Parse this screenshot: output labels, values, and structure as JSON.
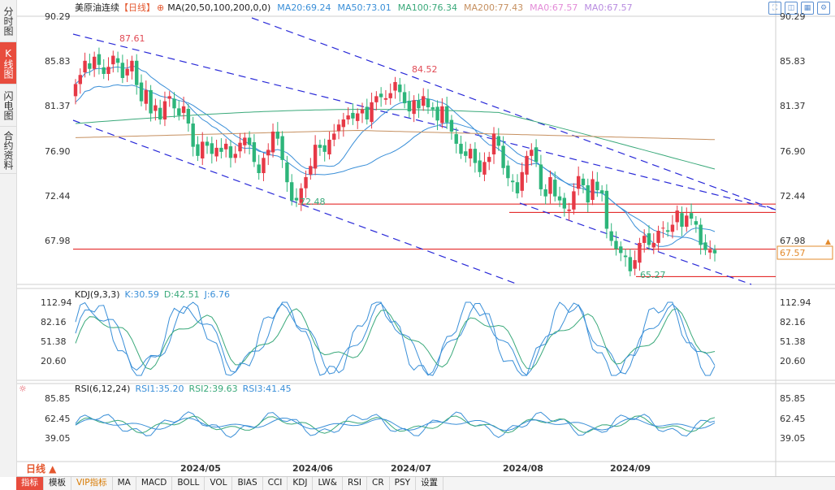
{
  "sidebar": {
    "tabs": [
      {
        "label": "分时图",
        "active": false
      },
      {
        "label": "K线图",
        "active": true
      },
      {
        "label": "闪电图",
        "active": false
      },
      {
        "label": "合约资料",
        "active": false
      }
    ]
  },
  "top_icons": [
    "fullscreen-icon",
    "expand-icon",
    "grid-icon",
    "settings-icon"
  ],
  "main_chart": {
    "title": "美原油连续",
    "period_tag": "【日线】",
    "ma_header": "MA(20,50,100,200,0,0)",
    "ma_labels": [
      {
        "text": "MA20:69.24",
        "color": "#3a8fd8"
      },
      {
        "text": "MA50:73.01",
        "color": "#3a8fd8"
      },
      {
        "text": "MA100:76.34",
        "color": "#3aa97a"
      },
      {
        "text": "MA200:77.43",
        "color": "#c69060"
      },
      {
        "text": "MA0:67.57",
        "color": "#e38bd8"
      },
      {
        "text": "MA0:67.57",
        "color": "#b88be0"
      }
    ],
    "y_ticks": [
      "90.29",
      "85.83",
      "81.37",
      "76.90",
      "72.44",
      "67.98"
    ],
    "current_price": "67.57",
    "annotations": {
      "high": "87.61",
      "mid_high": "84.52",
      "low1": "72.48",
      "low2": "65.27"
    }
  },
  "kdj_panel": {
    "title": "KDJ(9,3,3)",
    "labels": [
      {
        "text": "K:30.59",
        "color": "#3a8fd8"
      },
      {
        "text": "D:42.51",
        "color": "#3aa97a"
      },
      {
        "text": "J:6.76",
        "color": "#3a8fd8"
      }
    ],
    "y_ticks": [
      "112.94",
      "82.16",
      "51.38",
      "20.60"
    ]
  },
  "rsi_panel": {
    "title": "RSI(6,12,24)",
    "labels": [
      {
        "text": "RSI1:35.20",
        "color": "#3a8fd8"
      },
      {
        "text": "RSI2:39.63",
        "color": "#3aa97a"
      },
      {
        "text": "RSI3:41.45",
        "color": "#3a8fd8"
      }
    ],
    "y_ticks": [
      "85.85",
      "62.45",
      "39.05"
    ]
  },
  "x_axis": [
    "2024/05",
    "2024/06",
    "2024/07",
    "2024/08",
    "2024/09"
  ],
  "period_button": "日线 ▲",
  "toolbar": [
    "指标",
    "模板",
    "VIP指标",
    "MA",
    "MACD",
    "BOLL",
    "VOL",
    "BIAS",
    "CCI",
    "KDJ",
    "LW&",
    "RSI",
    "CR",
    "PSY",
    "设置"
  ],
  "colors": {
    "up": "#e63946",
    "down": "#2db57a",
    "ma20": "#3a8fd8",
    "ma50": "#3a8fd8",
    "ma100": "#3aa97a",
    "ma200": "#c69060",
    "channel": "#2a2ad8",
    "hline": "#e01010"
  },
  "chart_data": {
    "type": "candlestick",
    "title": "美原油连续 日线",
    "ylim": [
      64.5,
      91.0
    ],
    "current": 67.57,
    "channel_lines": "downward parallel channel (dashed blue)",
    "horizontal_levels": [
      72.44,
      71.6,
      68.0,
      65.27
    ],
    "series": [
      {
        "name": "MA20",
        "last": 69.24
      },
      {
        "name": "MA50",
        "last": 73.01
      },
      {
        "name": "MA100",
        "last": 76.34
      },
      {
        "name": "MA200",
        "last": 77.43
      }
    ],
    "closes": [
      84.3,
      85.2,
      86.6,
      85.8,
      87.0,
      86.2,
      85.3,
      86.0,
      87.1,
      86.4,
      84.9,
      85.8,
      86.6,
      84.2,
      82.6,
      83.7,
      81.4,
      82.2,
      80.8,
      82.6,
      83.1,
      81.9,
      81.2,
      82.1,
      80.4,
      78.1,
      77.2,
      78.6,
      78.2,
      77.4,
      78.0,
      77.6,
      78.4,
      77.0,
      77.4,
      78.5,
      79.0,
      78.3,
      76.6,
      75.5,
      77.0,
      77.8,
      79.6,
      78.9,
      76.8,
      74.6,
      72.8,
      72.8,
      74.0,
      75.1,
      76.2,
      78.3,
      78.0,
      77.6,
      78.8,
      79.4,
      80.3,
      80.8,
      81.2,
      80.9,
      81.4,
      81.8,
      80.8,
      82.5,
      83.1,
      83.0,
      82.9,
      83.4,
      84.5,
      83.5,
      82.4,
      81.6,
      82.7,
      81.9,
      83.1,
      82.0,
      81.8,
      80.7,
      82.1,
      80.5,
      79.6,
      78.4,
      77.4,
      77.2,
      77.9,
      76.5,
      75.6,
      76.6,
      77.1,
      79.4,
      78.2,
      76.0,
      75.0,
      74.6,
      73.5,
      75.6,
      77.2,
      77.8,
      76.6,
      73.9,
      73.2,
      75.1,
      73.2,
      72.8,
      72.0,
      71.9,
      73.7,
      75.2,
      74.3,
      72.6,
      74.9,
      73.8,
      73.5,
      70.0,
      68.8,
      68.0,
      67.6,
      67.2,
      65.8,
      66.9,
      68.6,
      69.3,
      68.4,
      68.6,
      69.8,
      70.1,
      69.7,
      70.4,
      71.8,
      70.2,
      71.3,
      71.0,
      70.4,
      68.4,
      67.9,
      67.9,
      67.57
    ]
  }
}
